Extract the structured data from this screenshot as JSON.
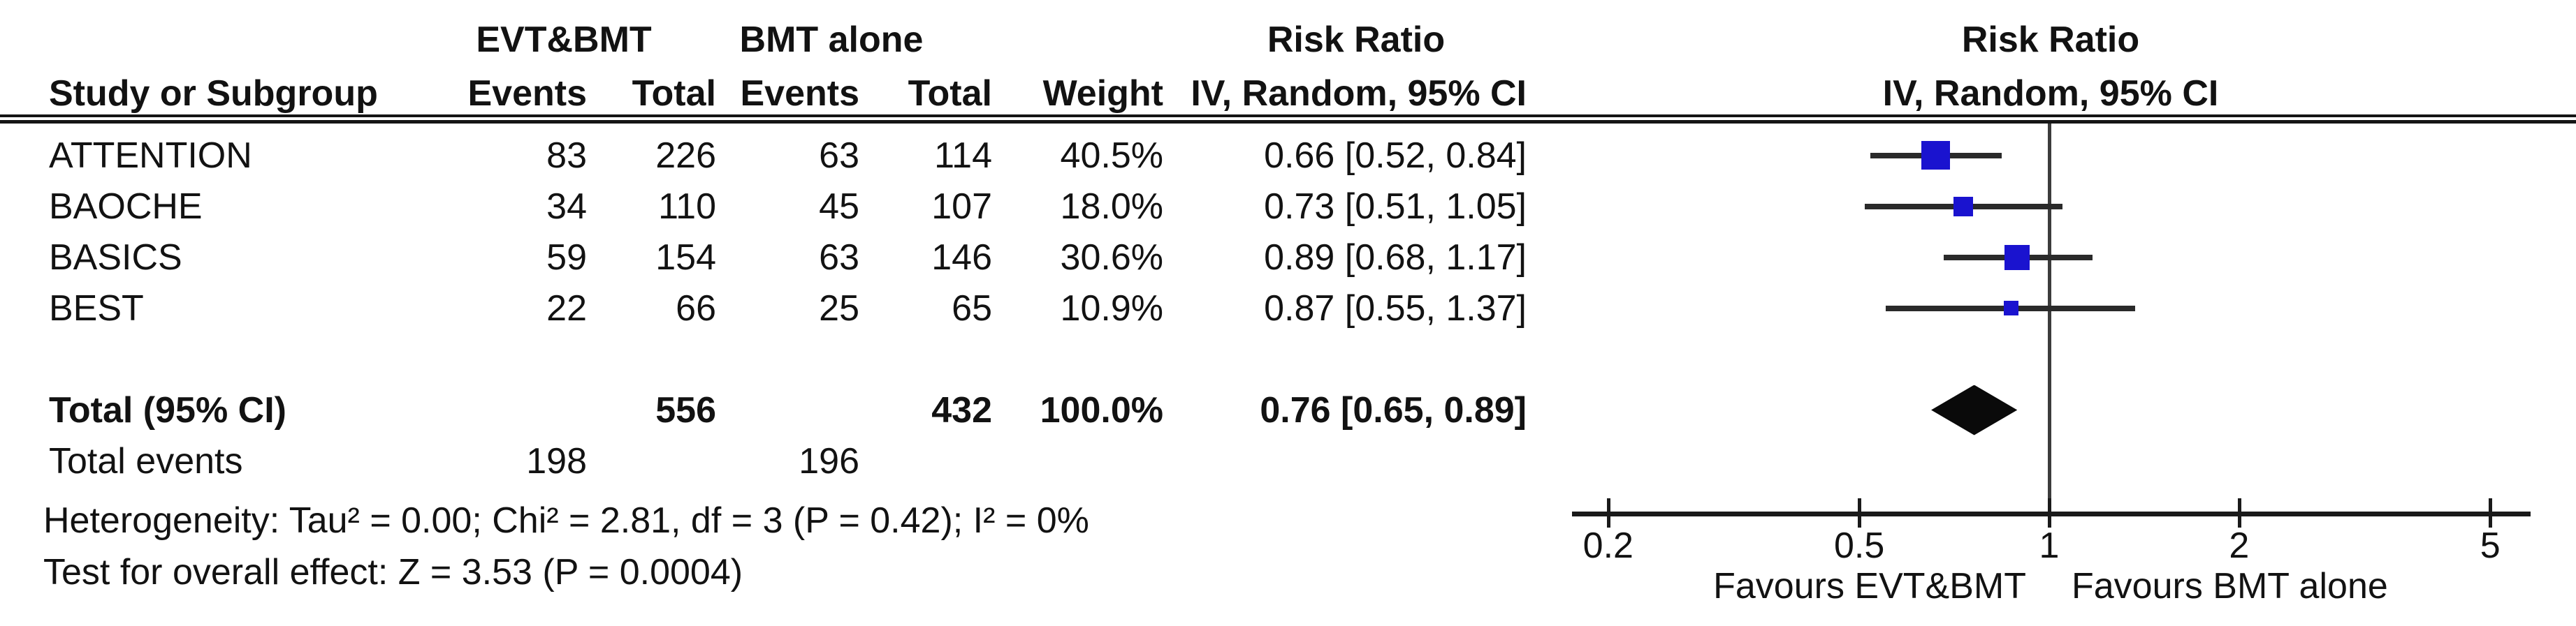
{
  "table": {
    "columns": {
      "group1": "EVT&BMT",
      "group2": "BMT alone",
      "study": "Study or Subgroup",
      "events": "Events",
      "total": "Total",
      "weight": "Weight",
      "effect_title": "Risk Ratio",
      "effect_method": "IV, Random, 95% CI"
    },
    "rows": [
      {
        "study": "ATTENTION",
        "e1": "83",
        "t1": "226",
        "e2": "63",
        "t2": "114",
        "weight": "40.5%",
        "ci": "0.66 [0.52, 0.84]"
      },
      {
        "study": "BAOCHE",
        "e1": "34",
        "t1": "110",
        "e2": "45",
        "t2": "107",
        "weight": "18.0%",
        "ci": "0.73 [0.51, 1.05]"
      },
      {
        "study": "BASICS",
        "e1": "59",
        "t1": "154",
        "e2": "63",
        "t2": "146",
        "weight": "30.6%",
        "ci": "0.89 [0.68, 1.17]"
      },
      {
        "study": "BEST",
        "e1": "22",
        "t1": "66",
        "e2": "25",
        "t2": "65",
        "weight": "10.9%",
        "ci": "0.87 [0.55, 1.37]"
      }
    ],
    "total_row": {
      "label": "Total (95% CI)",
      "t1": "556",
      "t2": "432",
      "weight": "100.0%",
      "ci": "0.76 [0.65, 0.89]"
    },
    "total_events_row": {
      "label": "Total events",
      "e1": "198",
      "e2": "196"
    },
    "heterogeneity": "Heterogeneity: Tau² = 0.00; Chi² = 2.81, df = 3 (P = 0.42); I² = 0%",
    "overall_effect": "Test for overall effect: Z = 3.53 (P = 0.0004)"
  },
  "chart_data": {
    "type": "forest",
    "effect_measure": "Risk Ratio",
    "model": "IV, Random, 95% CI",
    "x_axis": {
      "scale": "log",
      "min": 0.2,
      "max": 5,
      "ticks": [
        0.2,
        0.5,
        1,
        2,
        5
      ],
      "null_value": 1
    },
    "studies": [
      {
        "name": "ATTENTION",
        "rr": 0.66,
        "lo": 0.52,
        "hi": 0.84,
        "weight": 40.5
      },
      {
        "name": "BAOCHE",
        "rr": 0.73,
        "lo": 0.51,
        "hi": 1.05,
        "weight": 18.0
      },
      {
        "name": "BASICS",
        "rr": 0.89,
        "lo": 0.68,
        "hi": 1.17,
        "weight": 30.6
      },
      {
        "name": "BEST",
        "rr": 0.87,
        "lo": 0.55,
        "hi": 1.37,
        "weight": 10.9
      }
    ],
    "total": {
      "rr": 0.76,
      "lo": 0.65,
      "hi": 0.89,
      "weight": 100.0
    },
    "favours_left": "Favours EVT&BMT",
    "favours_right": "Favours BMT alone",
    "marker_color": "#1a13cf",
    "diamond_color": "#0a0a0a",
    "line_color": "#2a2a2a"
  }
}
